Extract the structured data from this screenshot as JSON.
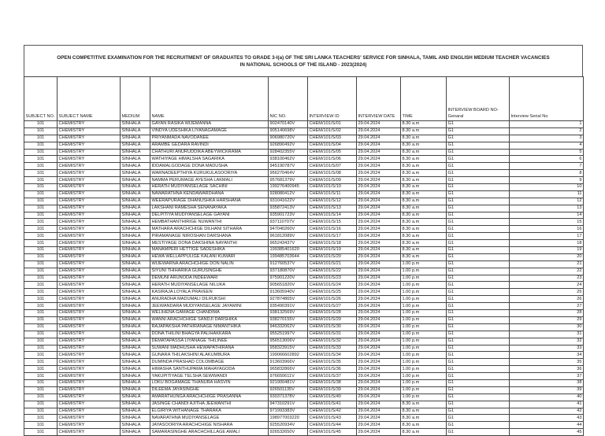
{
  "title": "OPEN COMPETITIVE EXAMINATION FOR THE RECRUITMENT OF GRADUATES TO GRADE 3-I(a) OF THE SRI LANKA TEACHERS' SERVICE FOR SINHALA, TAMIL AND ENGLISH MEDIUM TEACHER VACANCIES IN NATIONAL SCHOOLS OF THE ISLAND - 2023(2024)",
  "columns": [
    "SUBJECT NO.",
    "SUBJECT NAME",
    "MEDIUM",
    "NAME",
    "NIC NO.",
    "INTERVIEW ID",
    "INTERVIEW DATE",
    "TIME",
    "INTERVIEW BOARD NO-Genaral",
    "Interview Serial No"
  ],
  "rows": [
    [
      "101",
      "CHEMISTRY",
      "SINHALA",
      "GAYAN RASIKA WIJEMANNA",
      "902470140V",
      "CHEM/101/S/01",
      "29.04.2024",
      "8.30 a.m",
      "G1",
      "1"
    ],
    [
      "101",
      "CHEMISTRY",
      "SINHALA",
      "VINDYA UDESHIKA LIYANAGAMAGE",
      "905140698V",
      "CHEM/101/S/02",
      "29.04.2024",
      "8.30 a.m",
      "G1",
      "2"
    ],
    [
      "101",
      "CHEMISTRY",
      "SINHALA",
      "PRIYANMADA NAVODANEE",
      "906980720V",
      "CHEM/101/S/03",
      "29.04.2024",
      "8.30 a.m",
      "G1",
      "3"
    ],
    [
      "101",
      "CHEMISTRY",
      "SINHALA",
      "ARAMBE GEDARA RAVINDI",
      "926890492V",
      "CHEM/101/S/04",
      "29.04.2024",
      "8.30 a.m",
      "G1",
      "4"
    ],
    [
      "101",
      "CHEMISTRY",
      "SINHALA",
      "CHATHURI ANURUDDIKA ABEYWICKRAMA",
      "928402355V",
      "CHEM/101/S/05",
      "29.04.2024",
      "8.30 a.m",
      "G1",
      "5"
    ],
    [
      "101",
      "CHEMISTRY",
      "SINHALA",
      "WATHIYAGE HIMALSHA SAGARIKA",
      "938100462V",
      "CHEM/101/S/06",
      "29.04.2024",
      "8.30 a.m",
      "G1",
      "6"
    ],
    [
      "101",
      "CHEMISTRY",
      "SINHALA",
      "IDDAMALGODAGE DONA MADUSHA",
      "945190787V",
      "CHEM/101/S/07",
      "29.04.2024",
      "8.30 a.m",
      "G1",
      "7"
    ],
    [
      "101",
      "CHEMISTRY",
      "SINHALA",
      "WARNADEEPTHIYA KURUKULASOORIYA",
      "956270464V",
      "CHEM/101/S/08",
      "29.04.2024",
      "8.30 a.m",
      "G1",
      "8"
    ],
    [
      "101",
      "CHEMISTRY",
      "SINHALA",
      "NAMMA PERUMAGE AYESHA LAKMALI",
      "957681379V",
      "CHEM/101/S/09",
      "29.04.2024",
      "8.30 a.m",
      "G1",
      "9"
    ],
    [
      "101",
      "CHEMISTRY",
      "SINHALA",
      "HERATH MUDIYANSELAGE SACHINI",
      "199276400945",
      "CHEM/101/S/10",
      "29.04.2024",
      "8.30 a.m",
      "G1",
      "10"
    ],
    [
      "101",
      "CHEMISTRY",
      "SINHALA",
      "NAWARATHNA KENDAWARDHANA",
      "928080412V",
      "CHEM/101/S/11",
      "29.04.2024",
      "8.30 a.m",
      "G1",
      "11"
    ],
    [
      "101",
      "CHEMISTRY",
      "SINHALA",
      "WEERAPURAGE DHANUSHKA HARSHANA",
      "931041622V",
      "CHEM/101/S/12",
      "29.04.2024",
      "8.30 a.m",
      "G1",
      "12"
    ],
    [
      "101",
      "CHEMISTRY",
      "SINHALA",
      "LAKSHANI RAMESHA SENANAYAKA",
      "935872413V",
      "CHEM/101/S/13",
      "29.04.2024",
      "8.30 a.m",
      "G1",
      "13"
    ],
    [
      "101",
      "CHEMISTRY",
      "SINHALA",
      "DELPITIYA MUDIYANSELAGE GAYANI",
      "935901723V",
      "CHEM/101/S/14",
      "29.04.2024",
      "8.30 a.m",
      "G1",
      "14"
    ],
    [
      "101",
      "CHEMISTRY",
      "SINHALA",
      "HEMBATHANTHIRIGE NUWANTHI",
      "937110707V",
      "CHEM/101/S/15",
      "29.04.2024",
      "8.30 a.m",
      "G1",
      "15"
    ],
    [
      "101",
      "CHEMISTRY",
      "SINHALA",
      "MATHARA ARACHCHIGE DILHANI SITHARA",
      "947040260V",
      "CHEM/101/S/16",
      "29.04.2024",
      "8.30 a.m",
      "G1",
      "16"
    ],
    [
      "101",
      "CHEMISTRY",
      "SINHALA",
      "PIRAMANAGE NIROSHAN DARSHANA",
      "961812089V",
      "CHEM/101/S/17",
      "29.04.2024",
      "8.30 a.m",
      "G1",
      "17"
    ],
    [
      "101",
      "CHEMISTRY",
      "SINHALA",
      "MESTIYAGE DONA DAKSHINA NAYANTHI",
      "965243437V",
      "CHEM/101/S/18",
      "29.04.2024",
      "8.30 a.m",
      "G1",
      "18"
    ],
    [
      "101",
      "CHEMISTRY",
      "SINHALA",
      "MANAMPERI HETTIGE SADESHIKA",
      "199385401620",
      "CHEM/101/S/19",
      "29.04.2024",
      "8.30 a.m",
      "G1",
      "19"
    ],
    [
      "101",
      "CHEMISTRY",
      "SINHALA",
      "HEWA WELLAPPULIGE KALANI KUMARI",
      "199485703644",
      "CHEM/101/S/20",
      "29.04.2024",
      "8.30 a.m",
      "G1",
      "20"
    ],
    [
      "101",
      "CHEMISTRY",
      "SINHALA",
      "WIJEWARNA ARACHCHIGE DON NALIN",
      "912760537V",
      "CHEM/101/S/21",
      "29.04.2024",
      "1.00 p.m",
      "G1",
      "21"
    ],
    [
      "101",
      "CHEMISTRY",
      "SINHALA",
      "SIYUNI THIHARIKA GURUSINGHE",
      "937180870V",
      "CHEM/101/S/22",
      "29.04.2024",
      "1.00 p.m",
      "G1",
      "22"
    ],
    [
      "101",
      "CHEMISTRY",
      "SINHALA",
      "DEMUNI ARUNODA INDEEWARI",
      "975901220V",
      "CHEM/101/S/23",
      "29.04.2024",
      "1.00 p.m",
      "G1",
      "23"
    ],
    [
      "101",
      "CHEMISTRY",
      "SINHALA",
      "HERATH MUDIYANSELAGE NILUKA",
      "905651820V",
      "CHEM/101/S/24",
      "29.04.2024",
      "1.00 p.m",
      "G1",
      "24"
    ],
    [
      "101",
      "CHEMISTRY",
      "SINHALA",
      "KASIRAJA LOYALA PRAVEEN",
      "913605940V",
      "CHEM/101/S/25",
      "29.04.2024",
      "1.00 p.m",
      "G1",
      "25"
    ],
    [
      "101",
      "CHEMISTRY",
      "SINHALA",
      "ANURADHA MADUMALI DILRUKSHI",
      "927874865V",
      "CHEM/101/S/26",
      "29.04.2024",
      "1.00 p.m",
      "G1",
      "26"
    ],
    [
      "101",
      "CHEMISTRY",
      "SINHALA",
      "JEEWANDARA MUDIYANSELAGE JAYAMINI",
      "935490391V",
      "CHEM/101/S/27",
      "29.04.2024",
      "1.00 p.m",
      "G1",
      "27"
    ],
    [
      "101",
      "CHEMISTRY",
      "SINHALA",
      "WELIHENA GAMAGE CHANDIMA",
      "938132569V",
      "CHEM/101/S/28",
      "29.04.2024",
      "1.00 p.m",
      "G1",
      "28"
    ],
    [
      "101",
      "CHEMISTRY",
      "SINHALA",
      "WANNI ARACHCHIGE SANDJI DARSHIKA",
      "938270155V",
      "CHEM/101/S/29",
      "29.04.2024",
      "1.00 p.m",
      "G1",
      "29"
    ],
    [
      "101",
      "CHEMISTRY",
      "SINHALA",
      "RAJAPAKSHA PATHIRANAGE NIMANTHIKA",
      "946332062V",
      "CHEM/101/S/30",
      "29.04.2024",
      "1.00 p.m",
      "G1",
      "30"
    ],
    [
      "101",
      "CHEMISTRY",
      "SINHALA",
      "DONA THILINI BHAGYA PALIHAKKARA",
      "955251997V",
      "CHEM/101/S/31",
      "29.04.2024",
      "1.00 p.m",
      "G1",
      "31"
    ],
    [
      "101",
      "CHEMISTRY",
      "SINHALA",
      "DEMATAPASSA LIYANAGE THILINEE",
      "956513006V",
      "CHEM/101/S/32",
      "29.04.2024",
      "1.00 p.m",
      "G1",
      "32"
    ],
    [
      "101",
      "CHEMISTRY",
      "SINHALA",
      "SUWANI MADHUSHA HEWAPATHIRANA",
      "958323915V",
      "CHEM/101/S/33",
      "29.04.2024",
      "1.00 p.m",
      "G1",
      "33"
    ],
    [
      "101",
      "CHEMISTRY",
      "SINHALA",
      "GUNARA THILAKSHINI ALAKUMBURA",
      "199066602892",
      "CHEM/101/S/34",
      "29.04.2024",
      "1.00 p.m",
      "G1",
      "34"
    ],
    [
      "101",
      "CHEMISTRY",
      "SINHALA",
      "DUMINDA PRASHAD COLOMBAGE",
      "913603966V",
      "CHEM/101/S/35",
      "29.04.2024",
      "1.00 p.m",
      "G1",
      "35"
    ],
    [
      "101",
      "CHEMISTRY",
      "SINHALA",
      "HIMASHA SANTHUPAMA MAHAYAGODA",
      "965832866V",
      "CHEM/101/S/36",
      "29.04.2024",
      "1.00 p.m",
      "G1",
      "36"
    ],
    [
      "101",
      "CHEMISTRY",
      "SINHALA",
      "YAKUPITIYAGE TELSHA SEWWANDI",
      "976650611V",
      "CHEM/101/S/37",
      "29.04.2024",
      "1.00 p.m",
      "G1",
      "37"
    ],
    [
      "101",
      "CHEMISTRY",
      "SINHALA",
      "LOKU BOGAMAGE THANURA HASVIN",
      "921900481V",
      "CHEM/101/S/38",
      "29.04.2024",
      "1.00 p.m",
      "G1",
      "38"
    ],
    [
      "101",
      "CHEMISTRY",
      "SINHALA",
      "DILEEMA JAYASINGHE",
      "926501135V",
      "CHEM/101/S/39",
      "29.04.2024",
      "1.00 p.m",
      "G1",
      "39"
    ],
    [
      "101",
      "CHEMISTRY",
      "SINHALA",
      "AMARATHUNGA ARACHCHIGE PRASANNA",
      "930371378V",
      "CHEM/101/S/40",
      "29.04.2024",
      "1.00 p.m",
      "G1",
      "40"
    ],
    [
      "101",
      "CHEMISTRY",
      "SINHALA",
      "JASINGE CHANDI AJITHA JEEWANTHI",
      "947310291V",
      "CHEM/101/S/41",
      "29.04.2024",
      "8.30 a.m",
      "G1",
      "41"
    ],
    [
      "101",
      "CHEMISTRY",
      "SINHALA",
      "ELGIRIYA WITHANAGE THARAKA",
      "971993383V",
      "CHEM/101/S/42",
      "29.04.2024",
      "8.30 a.m",
      "G1",
      "42"
    ],
    [
      "101",
      "CHEMISTRY",
      "SINHALA",
      "NAVARATHNA MUDIYANSELAGE",
      "198977003220",
      "CHEM/101/S/43",
      "29.04.2024",
      "8.30 a.m",
      "G1",
      "43"
    ],
    [
      "101",
      "CHEMISTRY",
      "SINHALA",
      "JAYASOORIYA ARACHCHIGE NISHARA",
      "925520934V",
      "CHEM/101/S/44",
      "29.04.2024",
      "8.30 a.m",
      "G1",
      "44"
    ],
    [
      "101",
      "CHEMISTRY",
      "SINHALA",
      "SAMARASINGHE ARACHCHILLAGE  AMALI",
      "926532650V",
      "CHEM/101/S/45",
      "29.04.2024",
      "8.30 a.m",
      "G1",
      "45"
    ]
  ]
}
